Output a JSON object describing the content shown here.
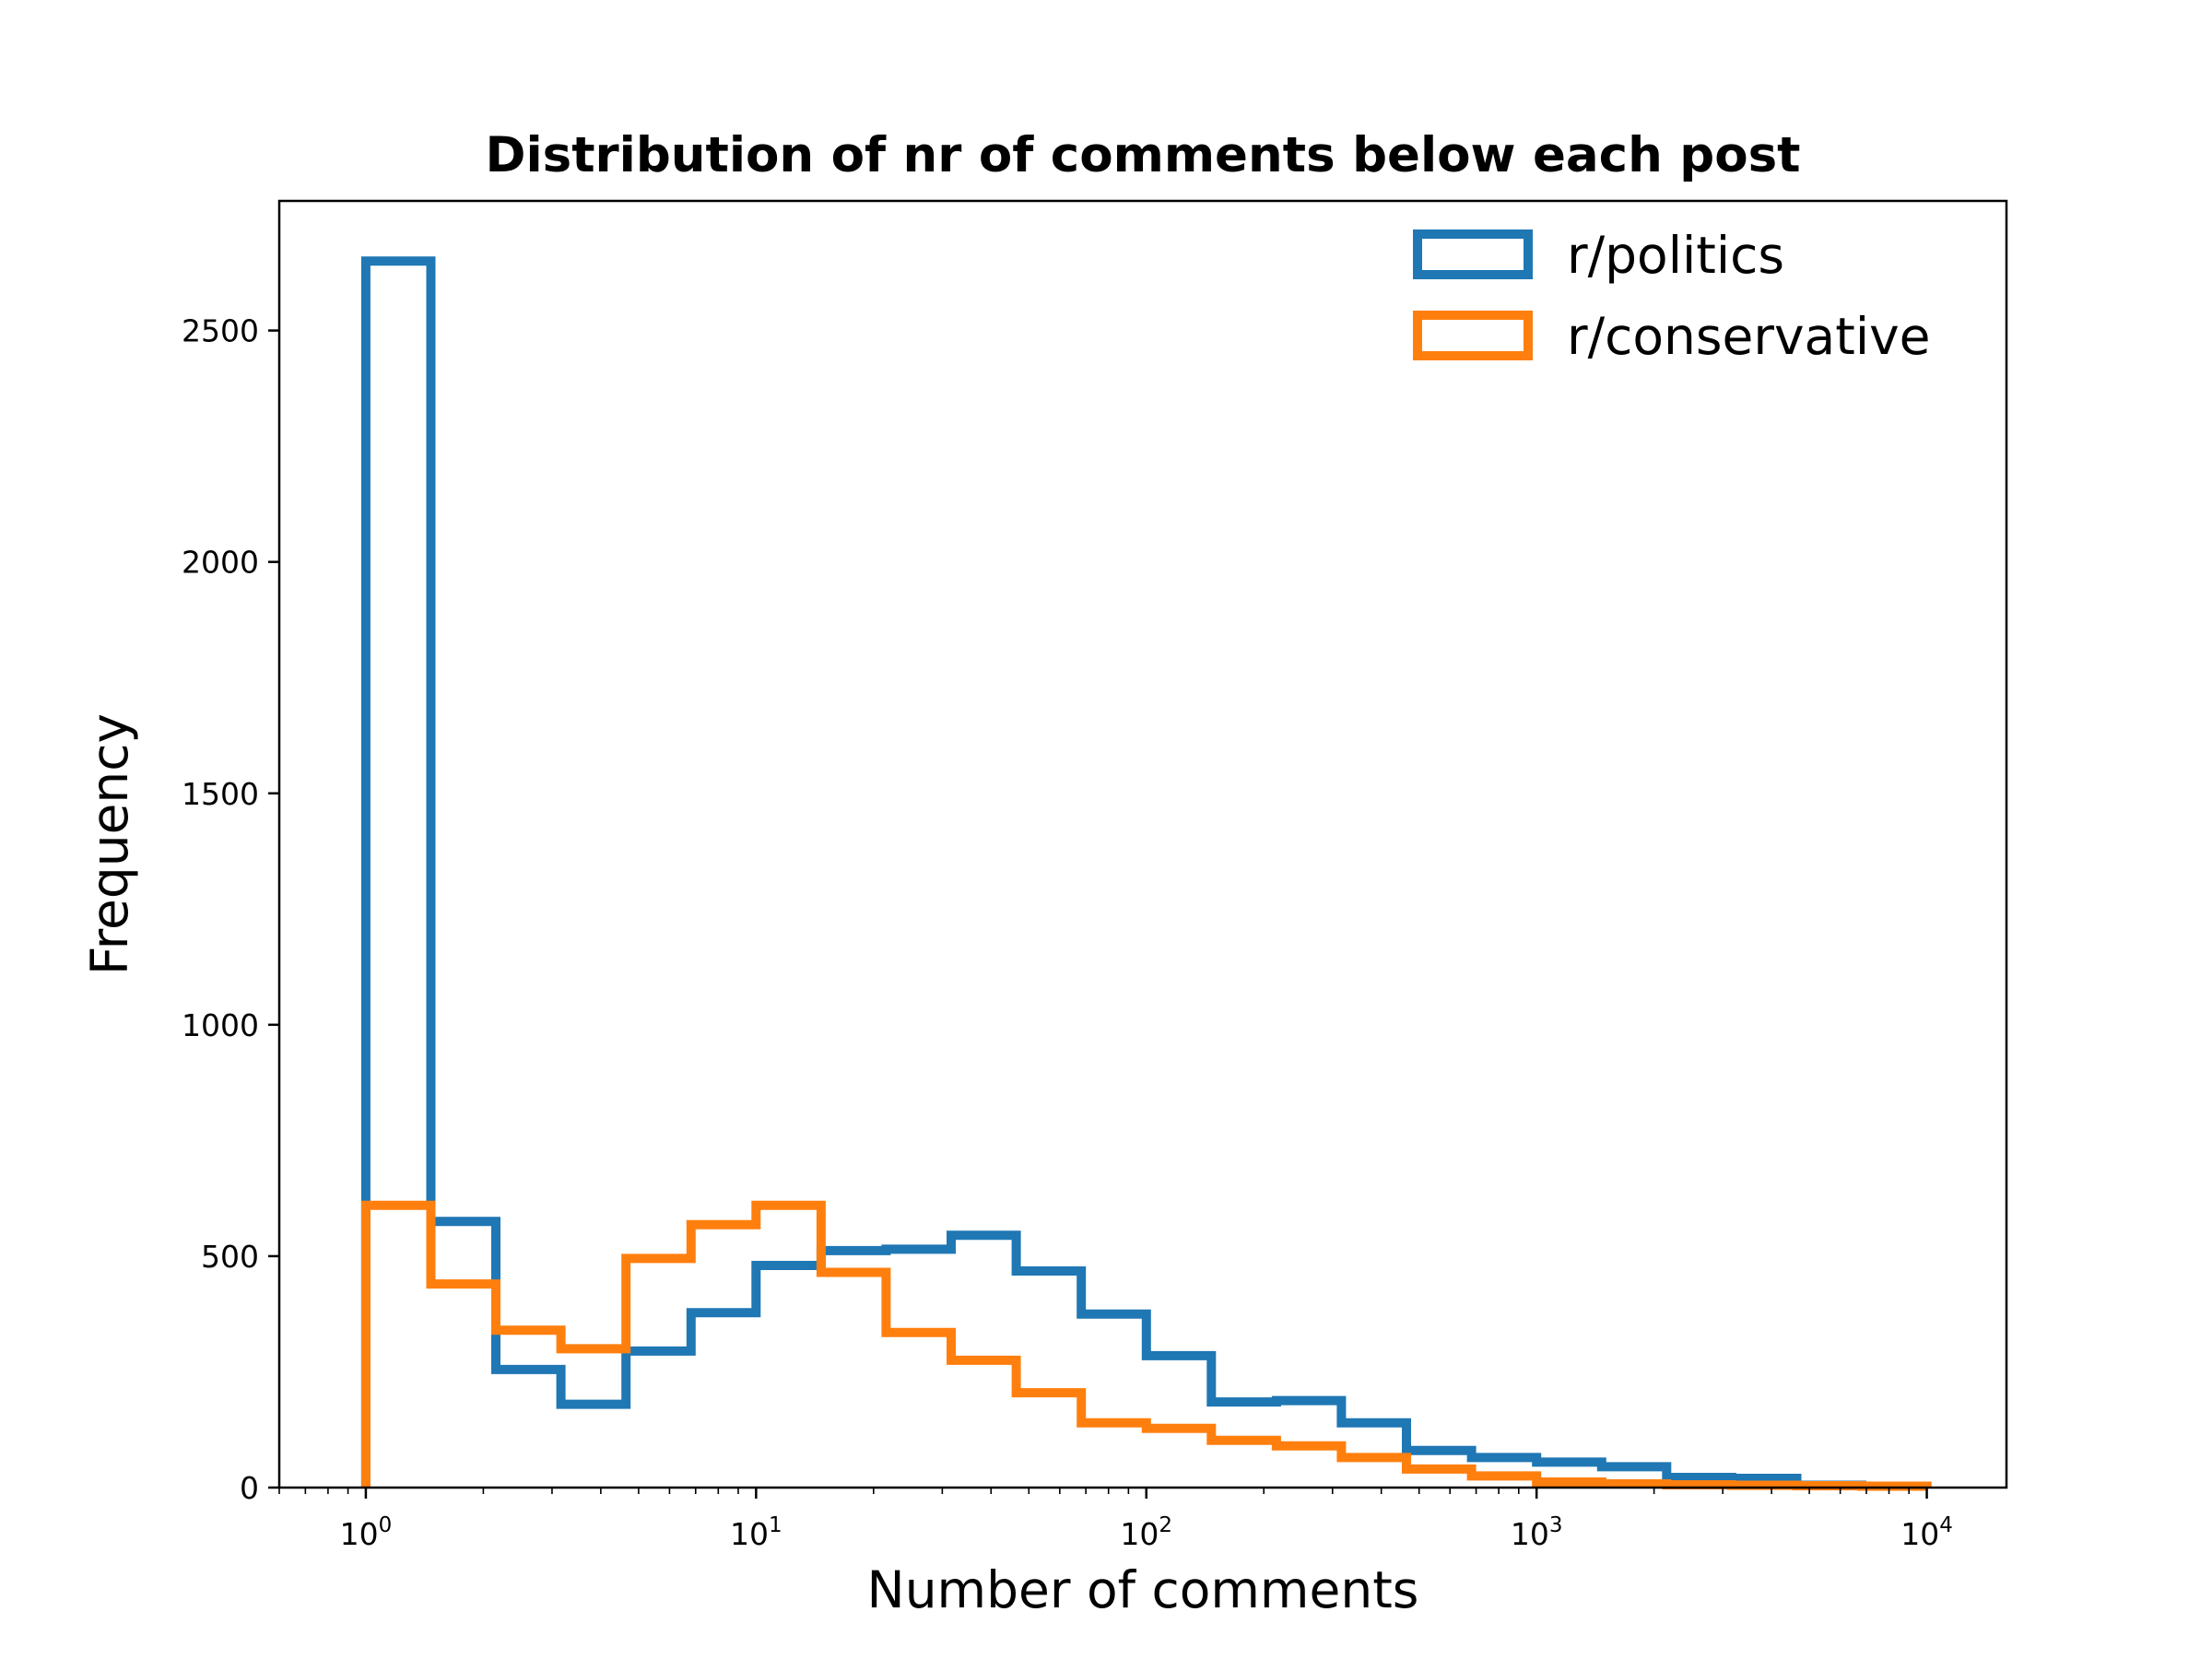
{
  "chart_data": {
    "type": "histogram-step",
    "title": "Distribution of nr of comments below each post",
    "xlabel": "Number of comments",
    "ylabel": "Frequency",
    "xscale": "log",
    "xlim": [
      0.6,
      16000
    ],
    "ylim": [
      0,
      2780
    ],
    "yticks": [
      0,
      500,
      1000,
      1500,
      2000,
      2500
    ],
    "xticks": [
      {
        "value": 1,
        "base": "10",
        "exp": "0"
      },
      {
        "value": 10,
        "base": "10",
        "exp": "1"
      },
      {
        "value": 100,
        "base": "10",
        "exp": "2"
      },
      {
        "value": 1000,
        "base": "10",
        "exp": "3"
      },
      {
        "value": 10000,
        "base": "10",
        "exp": "4"
      }
    ],
    "grid": false,
    "legend_position": "top-right",
    "bin_edges": [
      1,
      1.468,
      2.154,
      3.162,
      4.642,
      6.813,
      10,
      14.68,
      21.54,
      31.62,
      46.42,
      68.13,
      100,
      146.8,
      215.4,
      316.2,
      464.2,
      681.3,
      1000,
      1468,
      2154,
      3162,
      4642,
      6813,
      10000
    ],
    "series": [
      {
        "name": "r/politics",
        "color": "#1f77b4",
        "values": [
          2650,
          575,
          255,
          180,
          295,
          378,
          480,
          512,
          515,
          545,
          468,
          375,
          285,
          185,
          188,
          140,
          80,
          65,
          55,
          45,
          22,
          20,
          5,
          3
        ]
      },
      {
        "name": "r/conservative",
        "color": "#ff7f0e",
        "values": [
          610,
          440,
          340,
          300,
          495,
          568,
          610,
          465,
          335,
          275,
          205,
          140,
          128,
          102,
          90,
          65,
          40,
          25,
          12,
          8,
          6,
          5,
          4,
          3
        ]
      }
    ]
  }
}
